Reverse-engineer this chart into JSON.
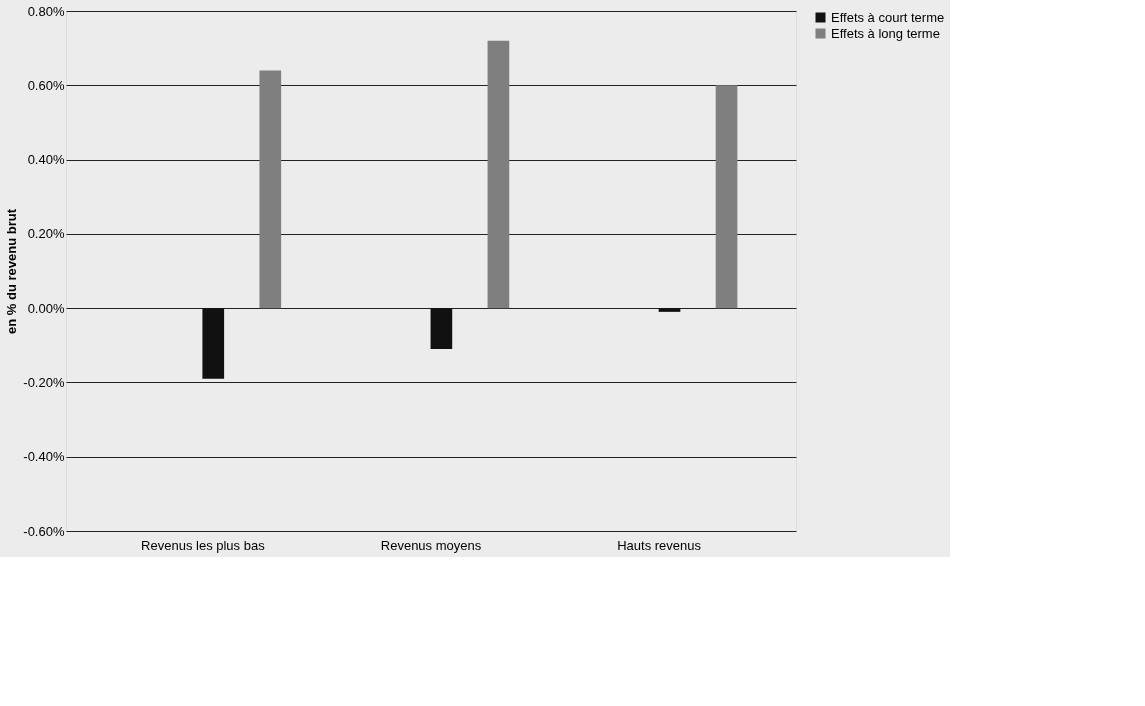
{
  "chart_data": {
    "type": "bar",
    "ylabel": "en % du revenu brut",
    "categories": [
      "Revenus les plus bas",
      "Revenus moyens",
      "Hauts revenus"
    ],
    "series": [
      {
        "name": "Effets à court terme",
        "color": "#111111",
        "values": [
          -0.19,
          -0.11,
          -0.01
        ]
      },
      {
        "name": "Effets à long terme",
        "color": "#7f7f7f",
        "values": [
          0.64,
          0.72,
          0.6
        ]
      }
    ],
    "ylim": [
      -0.6,
      0.8
    ],
    "yticks": [
      {
        "value": -0.6,
        "label": "-0.60%"
      },
      {
        "value": -0.4,
        "label": "-0.40%"
      },
      {
        "value": -0.2,
        "label": "-0.20%"
      },
      {
        "value": 0,
        "label": "0.00%"
      },
      {
        "value": 0.2,
        "label": "0.20%"
      },
      {
        "value": 0.4,
        "label": "0.40%"
      },
      {
        "value": 0.6,
        "label": "0.60%"
      },
      {
        "value": 0.8,
        "label": "0.80%"
      }
    ],
    "grid": "y",
    "legend": "top right"
  }
}
